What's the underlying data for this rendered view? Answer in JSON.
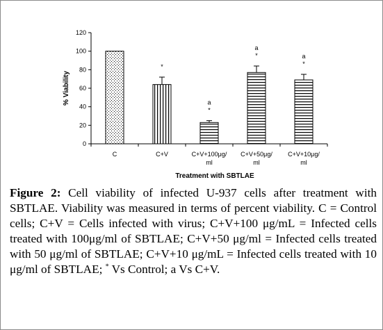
{
  "chart_data": {
    "type": "bar",
    "title": "",
    "xlabel": "Treatment with SBTLAE",
    "ylabel": "% Viability",
    "ylim": [
      0,
      120
    ],
    "yticks": [
      0,
      20,
      40,
      60,
      80,
      100,
      120
    ],
    "categories": [
      [
        "C"
      ],
      [
        "C+V"
      ],
      [
        "C+V+100μg/",
        "ml"
      ],
      [
        "C+V+50μg/",
        "ml"
      ],
      [
        "C+V+10μg/",
        "ml"
      ]
    ],
    "values": [
      100,
      64,
      23,
      77,
      69
    ],
    "errors": [
      0,
      8,
      2,
      7,
      6
    ],
    "annotations": [
      [],
      [
        "*"
      ],
      [
        "a",
        "*"
      ],
      [
        "a",
        "*"
      ],
      [
        "a",
        "*"
      ]
    ],
    "patterns": [
      "dots",
      "vertical",
      "horizontal",
      "horizontal",
      "horizontal"
    ],
    "grid": false
  },
  "caption": {
    "label": "Figure 2:",
    "text_before_sup": " Cell viability of infected U-937 cells after treatment with SBTLAE. Viability was measured in terms of percent viability. C = Control cells; C+V = Cells infected with virus; C+V+100 μg/mL = Infected cells treated with 100μg/ml of SBTLAE; C+V+50 μg/ml = Infected cells treated with 50 μg/ml of SBTLAE; C+V+10 μg/mL = Infected cells treated with 10 μg/ml of SBTLAE; ",
    "sup": "*",
    "text_after_sup": " Vs Control; a Vs C+V."
  }
}
